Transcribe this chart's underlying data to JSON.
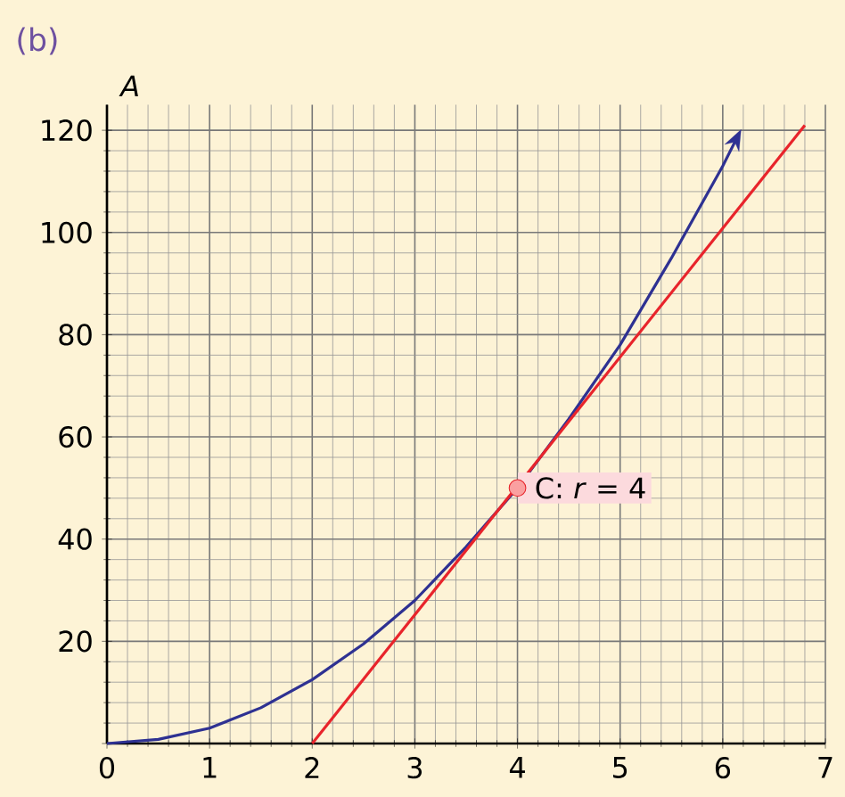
{
  "chart_data": {
    "type": "line",
    "title": "(b)",
    "ylabel": "A",
    "xlim": [
      0,
      7
    ],
    "ylim": [
      0,
      125
    ],
    "xticks": [
      0,
      1,
      2,
      3,
      4,
      5,
      6,
      7
    ],
    "yticks": [
      {
        "value": 0,
        "label": null
      },
      20,
      40,
      60,
      80,
      100,
      120
    ],
    "grid": true,
    "marker": "none",
    "line_style": "solid",
    "series": [
      {
        "color": "#2e3192",
        "x": [
          0,
          0.5,
          1,
          1.5,
          2,
          2.5,
          3,
          3.5,
          4,
          4.5,
          5,
          5.5,
          6,
          6.15
        ],
        "values": [
          0,
          0.8,
          3,
          7,
          12.5,
          19.5,
          28,
          38.5,
          50,
          63.5,
          78,
          95,
          113,
          119
        ]
      },
      {
        "color": "#e8242b",
        "x": [
          2,
          6.8
        ],
        "values": [
          0,
          121
        ]
      }
    ],
    "annotations": [
      {
        "text": "C: *r* = 4",
        "x": 4,
        "y": 50
      }
    ]
  }
}
